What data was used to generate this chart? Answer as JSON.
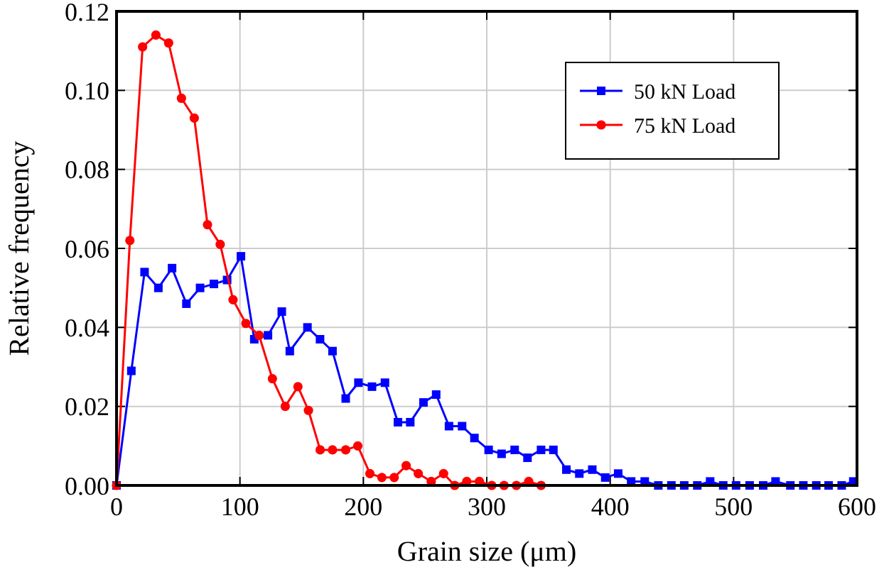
{
  "chart_data": {
    "type": "line",
    "xlabel": "Grain size (μm)",
    "ylabel": "Relative frequency",
    "xlim": [
      0,
      600
    ],
    "xticks": [
      0,
      100,
      200,
      300,
      400,
      500,
      600
    ],
    "ylim": [
      0,
      0.12
    ],
    "yticks": [
      {
        "value": 0,
        "label": "0.00"
      },
      {
        "value": 0.02,
        "label": "0.02"
      },
      {
        "value": 0.04,
        "label": "0.04"
      },
      {
        "value": 0.06,
        "label": "0.06"
      },
      {
        "value": 0.08,
        "label": "0.08"
      },
      {
        "value": 0.1,
        "label": "0.10"
      },
      {
        "value": 0.12,
        "label": "0.12"
      }
    ],
    "grid": true,
    "legend": "top right",
    "line_style": "solid",
    "series": [
      {
        "name": "50 kN Load",
        "color": "#0000ff",
        "marker": "square",
        "x": [
          0,
          12,
          22.7,
          33.9,
          45,
          56.6,
          67.7,
          78.9,
          89.6,
          100.8,
          111.6,
          122.7,
          133.9,
          140.4,
          154.7,
          164.9,
          175,
          185.7,
          196,
          207,
          217.5,
          228,
          238,
          248.7,
          259,
          269.4,
          280,
          290,
          301.5,
          312,
          322.6,
          333,
          344,
          354,
          364.5,
          375,
          385.5,
          396,
          406.5,
          417,
          428,
          439,
          449.6,
          460,
          470.6,
          481,
          491.6,
          502,
          513,
          524,
          534,
          546,
          556.5,
          567,
          577,
          587.6,
          597
        ],
        "values": [
          0,
          0.029,
          0.054,
          0.05,
          0.055,
          0.046,
          0.05,
          0.051,
          0.052,
          0.058,
          0.037,
          0.038,
          0.044,
          0.034,
          0.04,
          0.037,
          0.034,
          0.022,
          0.026,
          0.025,
          0.026,
          0.016,
          0.016,
          0.021,
          0.023,
          0.015,
          0.015,
          0.012,
          0.009,
          0.008,
          0.009,
          0.007,
          0.009,
          0.009,
          0.004,
          0.003,
          0.004,
          0.002,
          0.003,
          0.001,
          0.001,
          0,
          0,
          0,
          0,
          0.001,
          0,
          0,
          0,
          0,
          0.001,
          0,
          0,
          0,
          0,
          0,
          0.001
        ]
      },
      {
        "name": "75 kN Load",
        "color": "#ff0000",
        "marker": "circle",
        "x": [
          0,
          10.8,
          21.1,
          31.9,
          42.2,
          52.6,
          63,
          73.7,
          84,
          94.4,
          104.8,
          115.5,
          126.3,
          136.7,
          147,
          155.5,
          165,
          175,
          185.7,
          195.5,
          205.3,
          215,
          225,
          234.7,
          244.5,
          255,
          265,
          274,
          283.8,
          294,
          304,
          314,
          324,
          334,
          344
        ],
        "values": [
          0,
          0.062,
          0.111,
          0.114,
          0.112,
          0.098,
          0.093,
          0.066,
          0.061,
          0.047,
          0.041,
          0.038,
          0.027,
          0.02,
          0.025,
          0.019,
          0.009,
          0.009,
          0.009,
          0.01,
          0.003,
          0.002,
          0.002,
          0.005,
          0.003,
          0.001,
          0.003,
          0,
          0.001,
          0.001,
          0,
          0,
          0,
          0.001,
          0
        ]
      }
    ]
  }
}
